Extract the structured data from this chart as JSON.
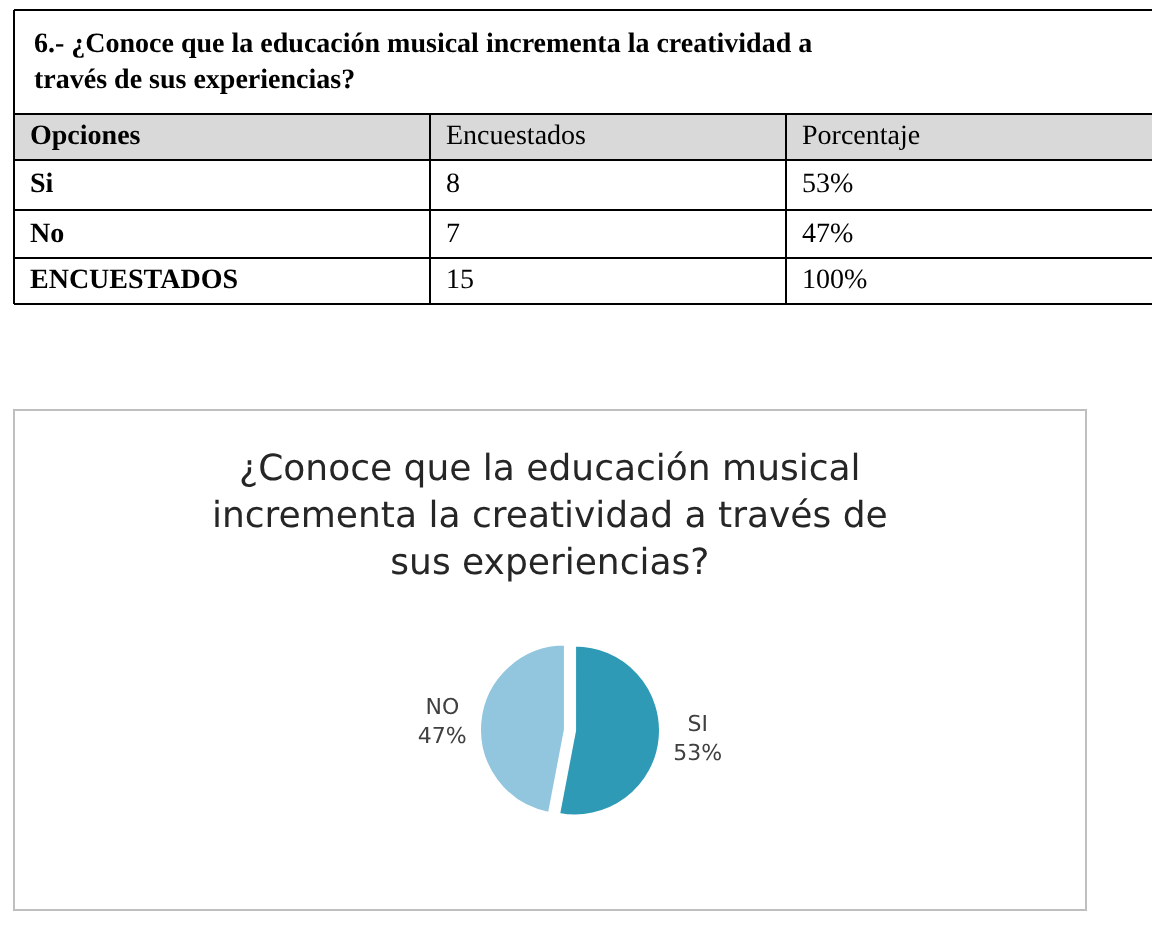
{
  "chart_data": [
    {
      "type": "other",
      "title": "6.- ¿Conoce que la educación musical incrementa la creatividad a través de sus experiencias?",
      "annotations": [
        "Opciones",
        "Encuestados",
        "Porcentaje",
        "Si",
        "8",
        "53%",
        "No",
        "7",
        "47%",
        "ENCUESTADOS",
        "15",
        "100%"
      ]
    },
    {
      "type": "pie",
      "title": "¿Conoce que la educación musical incrementa la creatividad a través de sus experiencias?",
      "categories": [
        "SI",
        "NO"
      ],
      "values": [
        53,
        47
      ],
      "value_labels": [
        "53%",
        "47%"
      ],
      "colors": [
        "#2e9ab6",
        "#92c6de"
      ]
    }
  ]
}
